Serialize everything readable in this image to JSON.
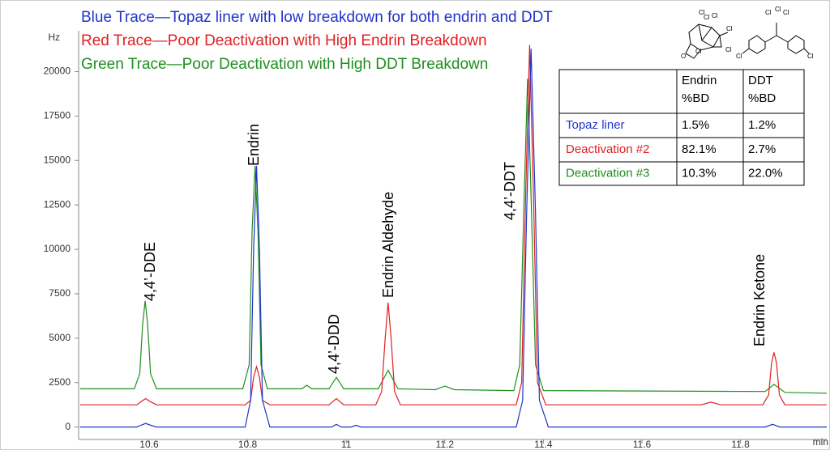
{
  "chart_data": {
    "type": "line",
    "y_label": "Hz",
    "x_label": "min",
    "xlim": [
      10.457,
      11.975
    ],
    "ylim": [
      -700,
      22300
    ],
    "xticks": [
      10.6,
      10.8,
      11,
      11.2,
      11.4,
      11.6,
      11.8
    ],
    "yticks": [
      0,
      2500,
      5000,
      7500,
      10000,
      12500,
      15000,
      17500,
      20000
    ],
    "series": [
      {
        "name": "Blue Trace—Topaz liner with low breakdown for both endrin and DDT",
        "color": "#2233cc",
        "x": [
          10.46,
          10.575,
          10.585,
          10.593,
          10.601,
          10.615,
          10.795,
          10.806,
          10.812,
          10.818,
          10.824,
          10.83,
          10.845,
          10.97,
          10.98,
          10.99,
          11.01,
          11.02,
          11.03,
          11.345,
          11.358,
          11.366,
          11.375,
          11.384,
          11.392,
          11.41,
          11.85,
          11.865,
          11.88,
          11.975
        ],
        "values": [
          0,
          0,
          120,
          200,
          120,
          0,
          0,
          1500,
          10000,
          14700,
          10000,
          1500,
          0,
          0,
          150,
          0,
          0,
          100,
          0,
          0,
          1500,
          12000,
          21300,
          12000,
          1500,
          0,
          0,
          150,
          0,
          0
        ]
      },
      {
        "name": "Red Trace—Poor Deactivation with High Endrin Breakdown",
        "color": "#e02020",
        "x": [
          10.46,
          10.575,
          10.585,
          10.593,
          10.601,
          10.615,
          10.795,
          10.806,
          10.812,
          10.818,
          10.824,
          10.83,
          10.845,
          10.965,
          10.98,
          10.995,
          11.06,
          11.072,
          11.079,
          11.085,
          11.091,
          11.098,
          11.11,
          11.345,
          11.356,
          11.364,
          11.372,
          11.38,
          11.388,
          11.405,
          11.72,
          11.74,
          11.76,
          11.845,
          11.857,
          11.863,
          11.868,
          11.873,
          11.879,
          11.89,
          11.975
        ],
        "values": [
          1250,
          1250,
          1450,
          1600,
          1450,
          1250,
          1250,
          1500,
          2800,
          3400,
          2800,
          1500,
          1250,
          1250,
          1600,
          1250,
          1250,
          2000,
          5000,
          7000,
          5000,
          2000,
          1250,
          1250,
          2500,
          13000,
          21500,
          13000,
          2500,
          1250,
          1250,
          1400,
          1250,
          1250,
          1800,
          3600,
          4200,
          3600,
          1800,
          1250,
          1250
        ]
      },
      {
        "name": "Green Trace—Poor Deactivation with High DDT Breakdown",
        "color": "#1f8f1f",
        "x": [
          10.46,
          10.57,
          10.581,
          10.587,
          10.592,
          10.597,
          10.603,
          10.615,
          10.79,
          10.803,
          10.809,
          10.815,
          10.821,
          10.827,
          10.84,
          10.91,
          10.92,
          10.93,
          10.965,
          10.98,
          10.995,
          11.065,
          11.085,
          11.105,
          11.18,
          11.2,
          11.22,
          11.34,
          11.352,
          11.361,
          11.368,
          11.375,
          11.384,
          11.4,
          11.85,
          11.868,
          11.89,
          11.975
        ],
        "values": [
          2150,
          2150,
          3000,
          5800,
          7100,
          5800,
          3000,
          2150,
          2150,
          3500,
          11000,
          14700,
          11000,
          3500,
          2150,
          2150,
          2350,
          2150,
          2150,
          2800,
          2150,
          2150,
          3200,
          2150,
          2100,
          2300,
          2100,
          2050,
          3500,
          13000,
          19600,
          13000,
          3500,
          2050,
          2000,
          2400,
          1950,
          1900
        ]
      }
    ],
    "annotations": [
      "4,4’-DDE",
      "Endrin",
      "4,4’-DDD",
      "Endrin Aldehyde",
      "4,4’-DDT",
      "Endrin Ketone"
    ],
    "table": {
      "columns": [
        "Endrin %BD",
        "DDT %BD"
      ],
      "rows": [
        {
          "label": "Topaz liner",
          "color": "#2233cc",
          "values": [
            "1.5%",
            "1.2%"
          ]
        },
        {
          "label": "Deactivation #2",
          "color": "#e02020",
          "values": [
            "82.1%",
            "2.7%"
          ]
        },
        {
          "label": "Deactivation #3",
          "color": "#1f8f1f",
          "values": [
            "10.3%",
            "22.0%"
          ]
        }
      ]
    },
    "structure_labels": {
      "endrin": [
        "Cl",
        "Cl",
        "Cl",
        "Cl",
        "Cl",
        "Cl",
        "O"
      ],
      "ddt": [
        "Cl",
        "Cl",
        "Cl",
        "Cl",
        "Cl"
      ]
    }
  }
}
